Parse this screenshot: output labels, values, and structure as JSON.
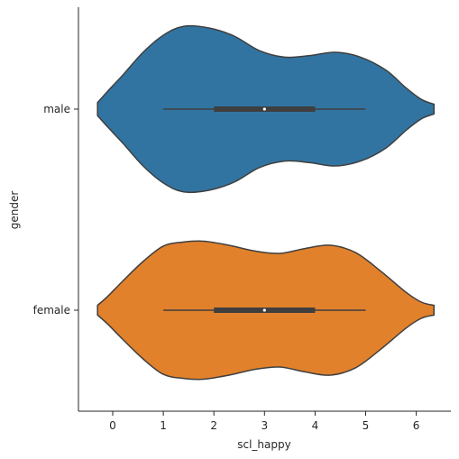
{
  "chart_data": {
    "type": "violin",
    "orientation": "horizontal",
    "xlabel": "scl_happy",
    "ylabel": "gender",
    "xlim": [
      -0.7,
      6.7
    ],
    "x_ticks": [
      0,
      1,
      2,
      3,
      4,
      5,
      6
    ],
    "categories": [
      "male",
      "female"
    ],
    "legend": "none",
    "grid": false,
    "series": [
      {
        "category": "male",
        "color": "#3274a1",
        "min": 1,
        "q1": 2,
        "median": 3,
        "q3": 4,
        "max": 5,
        "density": [
          [
            -0.3,
            0.08
          ],
          [
            -0.1,
            0.22
          ],
          [
            0.2,
            0.42
          ],
          [
            0.6,
            0.7
          ],
          [
            1.0,
            0.91
          ],
          [
            1.4,
            1.02
          ],
          [
            1.9,
            1.0
          ],
          [
            2.4,
            0.9
          ],
          [
            2.9,
            0.72
          ],
          [
            3.4,
            0.64
          ],
          [
            3.9,
            0.66
          ],
          [
            4.4,
            0.7
          ],
          [
            4.9,
            0.64
          ],
          [
            5.4,
            0.48
          ],
          [
            5.8,
            0.26
          ],
          [
            6.1,
            0.12
          ],
          [
            6.35,
            0.06
          ]
        ]
      },
      {
        "category": "female",
        "color": "#e1812c",
        "min": 1,
        "q1": 2,
        "median": 3,
        "q3": 4,
        "max": 5,
        "density": [
          [
            -0.3,
            0.06
          ],
          [
            -0.1,
            0.17
          ],
          [
            0.2,
            0.36
          ],
          [
            0.6,
            0.6
          ],
          [
            1.0,
            0.79
          ],
          [
            1.4,
            0.84
          ],
          [
            1.8,
            0.85
          ],
          [
            2.3,
            0.8
          ],
          [
            2.8,
            0.73
          ],
          [
            3.3,
            0.7
          ],
          [
            3.8,
            0.76
          ],
          [
            4.3,
            0.8
          ],
          [
            4.8,
            0.71
          ],
          [
            5.3,
            0.48
          ],
          [
            5.8,
            0.22
          ],
          [
            6.1,
            0.1
          ],
          [
            6.35,
            0.06
          ]
        ]
      }
    ]
  }
}
